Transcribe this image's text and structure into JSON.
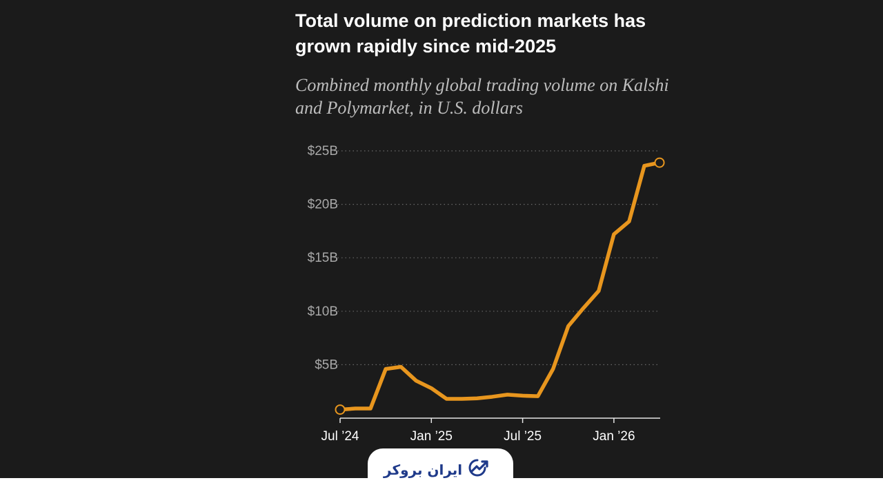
{
  "chart_data": {
    "type": "line",
    "title": "Total volume on prediction markets has grown rapidly since mid-2025",
    "subtitle": "Combined monthly global trading volume on Kalshi and Polymarket, in U.S. dollars",
    "xlabel": "",
    "ylabel": "",
    "x": [
      "2024-07",
      "2024-08",
      "2024-09",
      "2024-10",
      "2024-11",
      "2024-12",
      "2025-01",
      "2025-02",
      "2025-03",
      "2025-04",
      "2025-05",
      "2025-06",
      "2025-07",
      "2025-08",
      "2025-09",
      "2025-10",
      "2025-11",
      "2025-12",
      "2026-01",
      "2026-02",
      "2026-03",
      "2026-04"
    ],
    "series": [
      {
        "values": [
          0.8,
          0.9,
          0.9,
          4.6,
          4.8,
          3.5,
          2.8,
          1.8,
          1.8,
          1.85,
          2.0,
          2.2,
          2.1,
          2.05,
          4.6,
          8.6,
          10.3,
          11.9,
          17.2,
          18.4,
          23.6,
          23.9
        ]
      }
    ],
    "ylim": [
      0,
      25
    ],
    "yticks": [
      {
        "value": 5,
        "label": "$5B"
      },
      {
        "value": 10,
        "label": "$10B"
      },
      {
        "value": 15,
        "label": "$15B"
      },
      {
        "value": 20,
        "label": "$20B"
      },
      {
        "value": 25,
        "label": "$25B"
      }
    ],
    "xticks": [
      {
        "x": "2024-07",
        "label": "Jul ’24"
      },
      {
        "x": "2025-01",
        "label": "Jan ’25"
      },
      {
        "x": "2025-07",
        "label": "Jul ’25"
      },
      {
        "x": "2026-01",
        "label": "Jan ’26"
      }
    ],
    "grid": true,
    "colors": {
      "line": "#e8961e",
      "background": "#1b1b1b",
      "grid": "#6a6a6a",
      "tick_text": "#a8a8a8",
      "xtick_text": "#ffffff"
    }
  },
  "branding": {
    "logo_text": "ایران بروکر",
    "logo_icon": "trend-arrow-icon",
    "logo_color": "#1f3a8a"
  }
}
